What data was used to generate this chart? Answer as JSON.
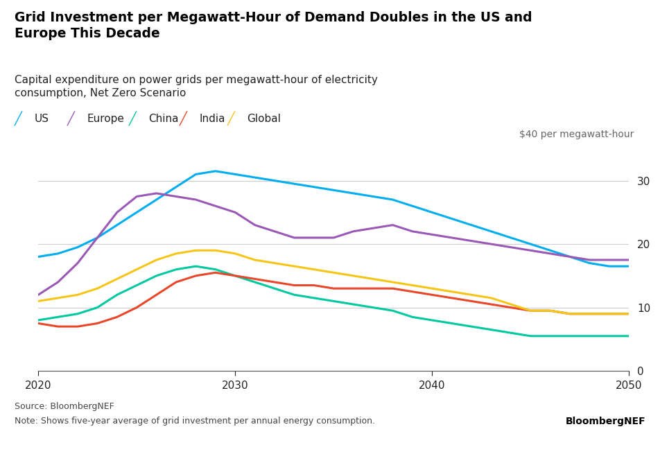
{
  "title_bold": "Grid Investment per Megawatt-Hour of Demand Doubles in the US and\nEurope This Decade",
  "subtitle": "Capital expenditure on power grids per megawatt-hour of electricity\nconsumption, Net Zero Scenario",
  "ylabel_annotation": "$40 per megawatt-hour",
  "source": "Source: BloombergNEF",
  "note": "Note: Shows five-year average of grid investment per annual energy consumption.",
  "brand": "BloombergNEF",
  "ylim": [
    0,
    35
  ],
  "yticks": [
    0,
    10,
    20,
    30
  ],
  "xlim": [
    2020,
    2050
  ],
  "xticks": [
    2020,
    2030,
    2040,
    2050
  ],
  "background_color": "#ffffff",
  "series": {
    "US": {
      "color": "#00aeef",
      "x": [
        2020,
        2021,
        2022,
        2023,
        2024,
        2025,
        2026,
        2027,
        2028,
        2029,
        2030,
        2031,
        2032,
        2033,
        2034,
        2035,
        2036,
        2037,
        2038,
        2039,
        2040,
        2041,
        2042,
        2043,
        2044,
        2045,
        2046,
        2047,
        2048,
        2049,
        2050
      ],
      "y": [
        18,
        18.5,
        19.5,
        21,
        23,
        25,
        27,
        29,
        31,
        31.5,
        31,
        30.5,
        30,
        29.5,
        29,
        28.5,
        28,
        27.5,
        27,
        26,
        25,
        24,
        23,
        22,
        21,
        20,
        19,
        18,
        17,
        16.5,
        16.5
      ]
    },
    "Europe": {
      "color": "#9b59b6",
      "x": [
        2020,
        2021,
        2022,
        2023,
        2024,
        2025,
        2026,
        2027,
        2028,
        2029,
        2030,
        2031,
        2032,
        2033,
        2034,
        2035,
        2036,
        2037,
        2038,
        2039,
        2040,
        2041,
        2042,
        2043,
        2044,
        2045,
        2046,
        2047,
        2048,
        2049,
        2050
      ],
      "y": [
        12,
        14,
        17,
        21,
        25,
        27.5,
        28,
        27.5,
        27,
        26,
        25,
        23,
        22,
        21,
        21,
        21,
        22,
        22.5,
        23,
        22,
        21.5,
        21,
        20.5,
        20,
        19.5,
        19,
        18.5,
        18,
        17.5,
        17.5,
        17.5
      ]
    },
    "China": {
      "color": "#00c8a0",
      "x": [
        2020,
        2021,
        2022,
        2023,
        2024,
        2025,
        2026,
        2027,
        2028,
        2029,
        2030,
        2031,
        2032,
        2033,
        2034,
        2035,
        2036,
        2037,
        2038,
        2039,
        2040,
        2041,
        2042,
        2043,
        2044,
        2045,
        2046,
        2047,
        2048,
        2049,
        2050
      ],
      "y": [
        8,
        8.5,
        9,
        10,
        12,
        13.5,
        15,
        16,
        16.5,
        16,
        15,
        14,
        13,
        12,
        11.5,
        11,
        10.5,
        10,
        9.5,
        8.5,
        8,
        7.5,
        7,
        6.5,
        6,
        5.5,
        5.5,
        5.5,
        5.5,
        5.5,
        5.5
      ]
    },
    "India": {
      "color": "#e8472a",
      "x": [
        2020,
        2021,
        2022,
        2023,
        2024,
        2025,
        2026,
        2027,
        2028,
        2029,
        2030,
        2031,
        2032,
        2033,
        2034,
        2035,
        2036,
        2037,
        2038,
        2039,
        2040,
        2041,
        2042,
        2043,
        2044,
        2045,
        2046,
        2047,
        2048,
        2049,
        2050
      ],
      "y": [
        7.5,
        7,
        7,
        7.5,
        8.5,
        10,
        12,
        14,
        15,
        15.5,
        15,
        14.5,
        14,
        13.5,
        13.5,
        13,
        13,
        13,
        13,
        12.5,
        12,
        11.5,
        11,
        10.5,
        10,
        9.5,
        9.5,
        9,
        9,
        9,
        9
      ]
    },
    "Global": {
      "color": "#f5c518",
      "x": [
        2020,
        2021,
        2022,
        2023,
        2024,
        2025,
        2026,
        2027,
        2028,
        2029,
        2030,
        2031,
        2032,
        2033,
        2034,
        2035,
        2036,
        2037,
        2038,
        2039,
        2040,
        2041,
        2042,
        2043,
        2044,
        2045,
        2046,
        2047,
        2048,
        2049,
        2050
      ],
      "y": [
        11,
        11.5,
        12,
        13,
        14.5,
        16,
        17.5,
        18.5,
        19,
        19,
        18.5,
        17.5,
        17,
        16.5,
        16,
        15.5,
        15,
        14.5,
        14,
        13.5,
        13,
        12.5,
        12,
        11.5,
        10.5,
        9.5,
        9.5,
        9,
        9,
        9,
        9
      ]
    }
  },
  "legend_order": [
    "US",
    "Europe",
    "China",
    "India",
    "Global"
  ]
}
